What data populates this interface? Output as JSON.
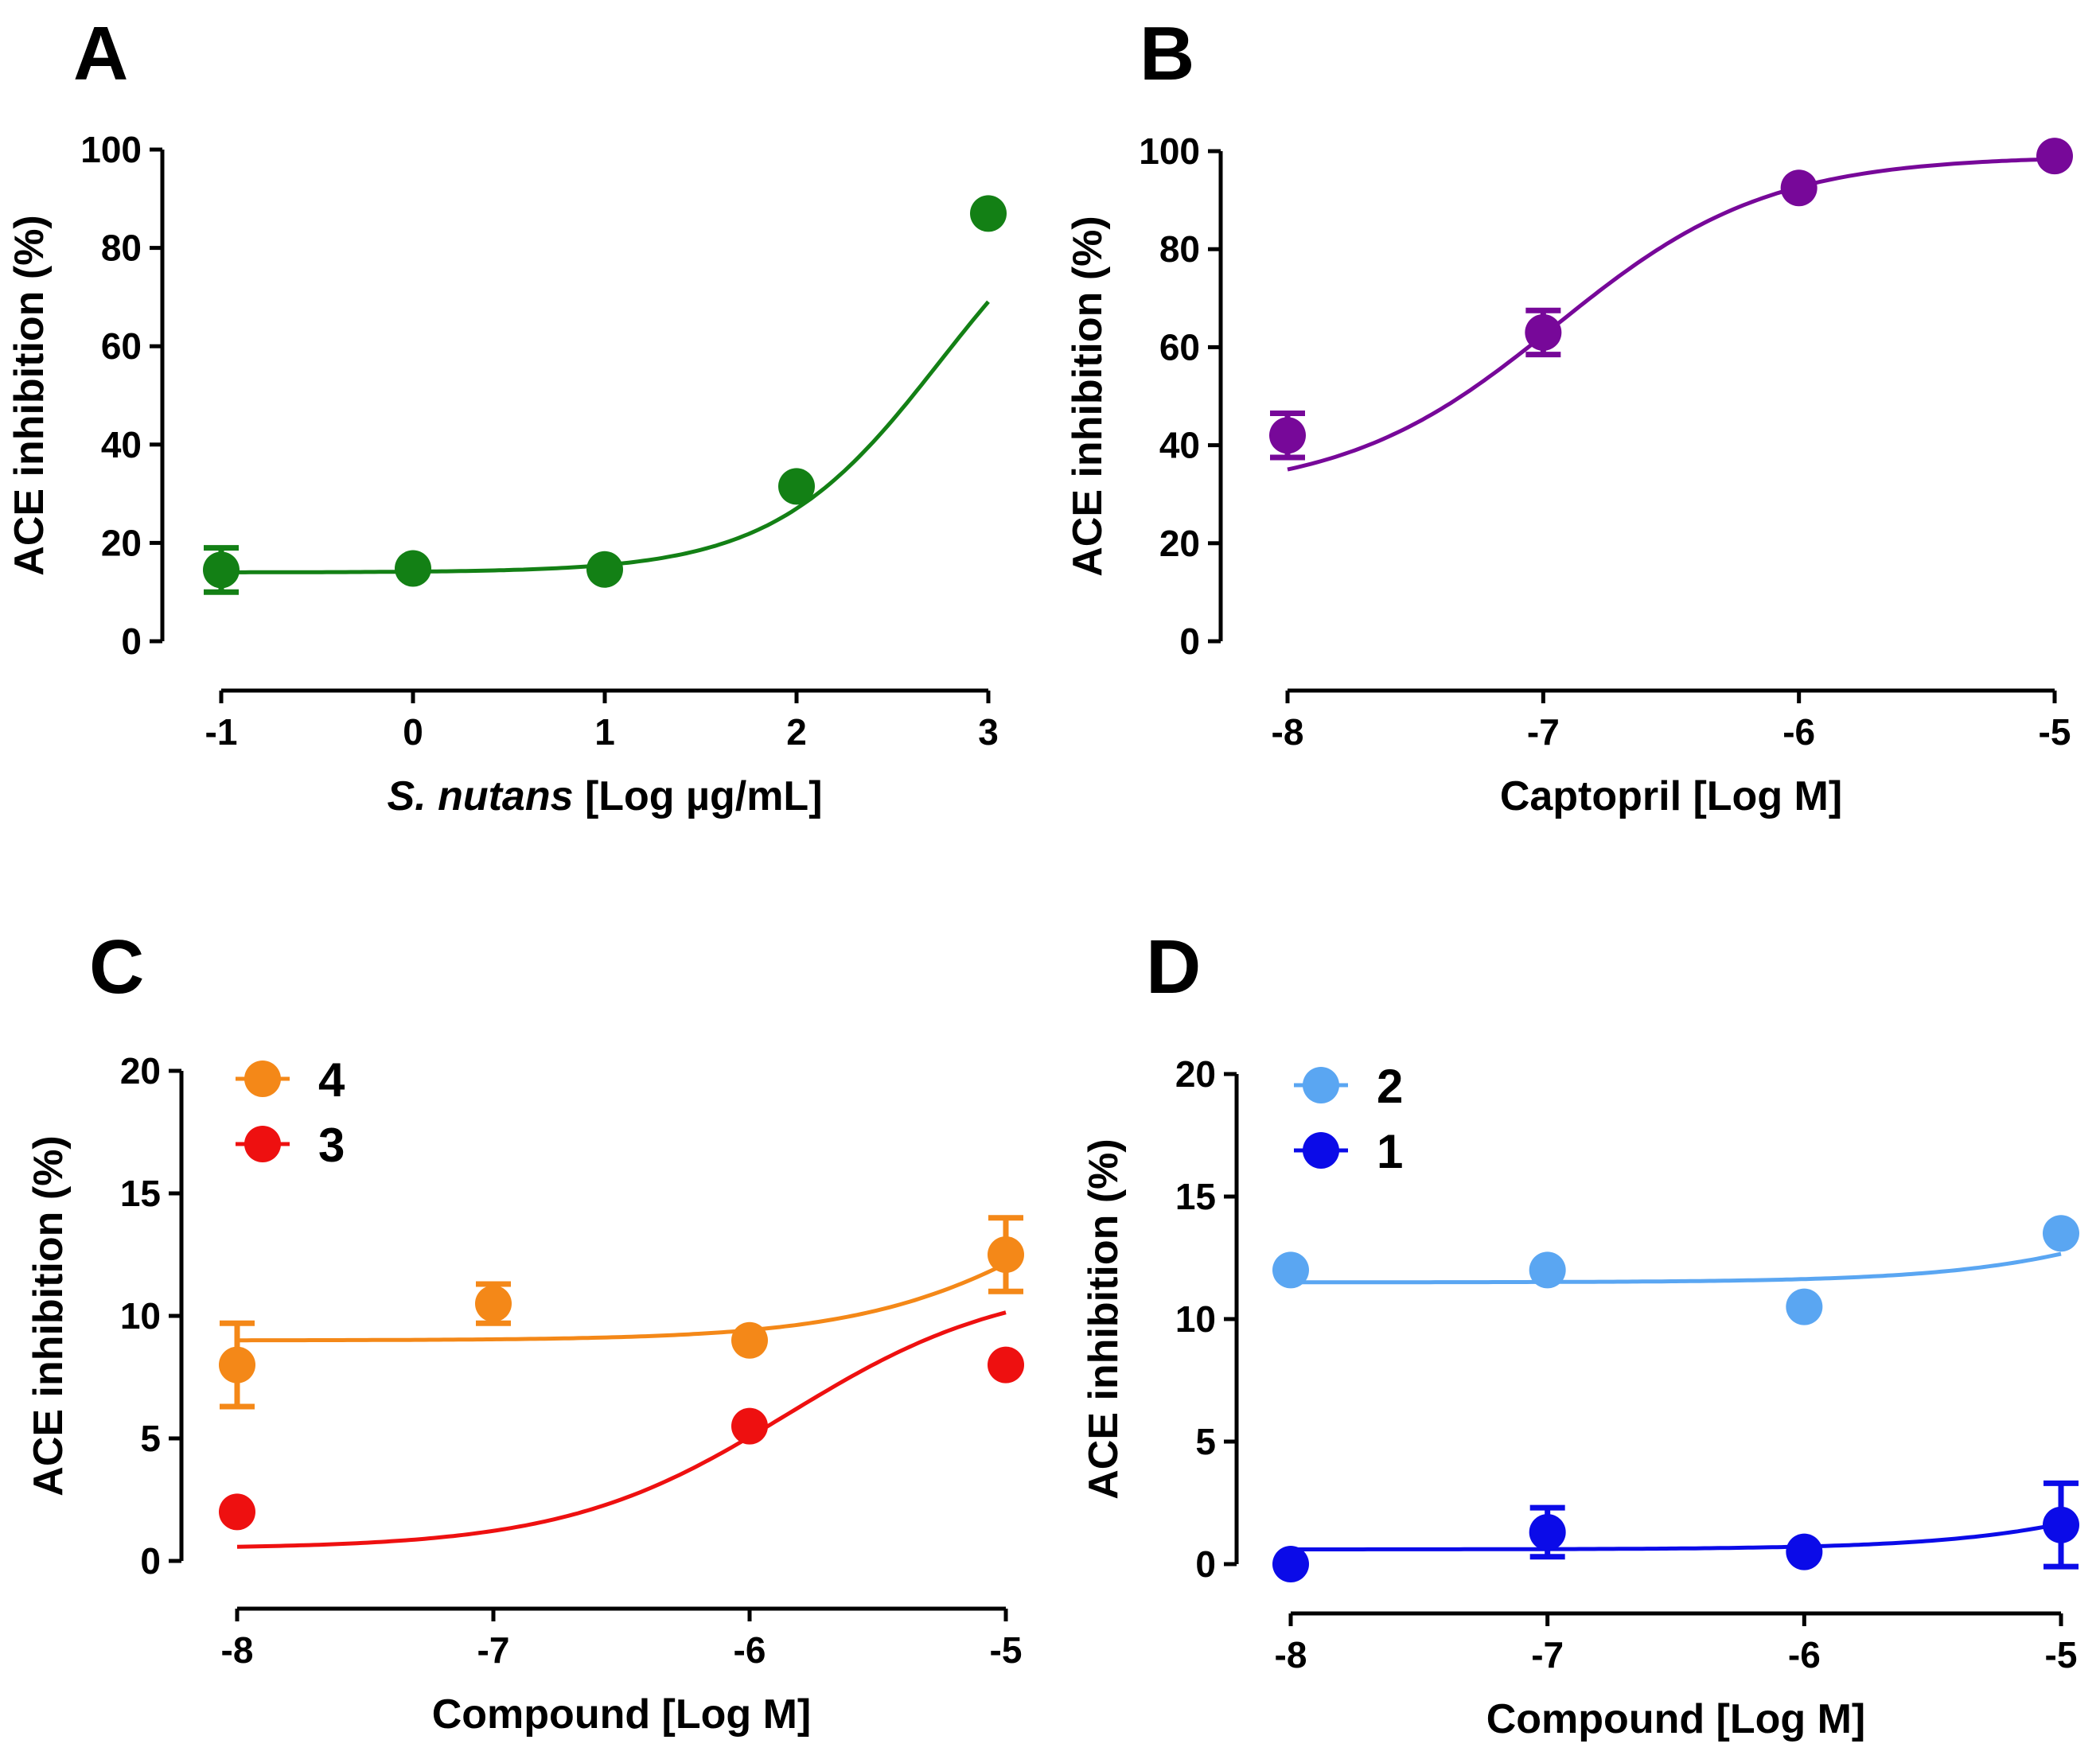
{
  "chart_data": [
    {
      "panel": "A",
      "type": "scatter",
      "xlabel_italic": "S. nutans",
      "xlabel_rest": " [Log µg/mL]",
      "ylabel": "ACE inhibition (%)",
      "xlim": [
        -1,
        3
      ],
      "ylim": [
        0,
        100
      ],
      "xticks": [
        -1,
        0,
        1,
        2,
        3
      ],
      "yticks": [
        0,
        20,
        40,
        60,
        80,
        100
      ],
      "series": [
        {
          "name": "S. nutans",
          "color": "#138015",
          "x": [
            -1,
            0,
            1,
            2,
            3
          ],
          "y": [
            14.5,
            14.8,
            14.6,
            31.5,
            87
          ],
          "err": [
            4.5,
            0,
            0,
            0,
            0
          ],
          "fit": {
            "bottom": 14,
            "top": 100,
            "logEC50": 2.75,
            "hill": 1
          }
        }
      ]
    },
    {
      "panel": "B",
      "type": "scatter",
      "xlabel": "Captopril [Log M]",
      "ylabel": "ACE inhibition (%)",
      "xlim": [
        -8,
        -5
      ],
      "ylim": [
        0,
        100
      ],
      "xticks": [
        -8,
        -7,
        -6,
        -5
      ],
      "yticks": [
        0,
        20,
        40,
        60,
        80,
        100
      ],
      "series": [
        {
          "name": "Captopril",
          "color": "#770899",
          "x": [
            -8,
            -7,
            -6,
            -5
          ],
          "y": [
            42,
            63,
            92.5,
            99
          ],
          "err": [
            4.5,
            4.5,
            0,
            0
          ],
          "fit": {
            "bottom": 30,
            "top": 99,
            "logEC50": -6.95,
            "hill": 1.05
          }
        }
      ]
    },
    {
      "panel": "C",
      "type": "scatter",
      "xlabel": "Compound [Log M]",
      "ylabel": "ACE inhibition (%)",
      "xlim": [
        -8,
        -5
      ],
      "ylim": [
        0,
        20
      ],
      "xticks": [
        -8,
        -7,
        -6,
        -5
      ],
      "yticks": [
        0,
        5,
        10,
        15,
        20
      ],
      "series": [
        {
          "name": "4",
          "color": "#f48818",
          "x": [
            -8,
            -7,
            -6,
            -5
          ],
          "y": [
            8,
            10.5,
            9,
            12.5
          ],
          "err": [
            1.7,
            0.8,
            0,
            1.5
          ],
          "fit": {
            "bottom": 9,
            "top": 20,
            "logEC50": -4.6,
            "hill": 1
          }
        },
        {
          "name": "3",
          "color": "#ee1010",
          "x": [
            -8,
            -7,
            -6,
            -5
          ],
          "y": [
            2,
            null,
            5.5,
            8
          ],
          "err": [
            0,
            0,
            0,
            0
          ],
          "fit": {
            "bottom": 0.5,
            "top": 11.5,
            "logEC50": -5.85,
            "hill": 1
          }
        }
      ]
    },
    {
      "panel": "D",
      "type": "scatter",
      "xlabel": "Compound [Log M]",
      "ylabel": "ACE inhibition (%)",
      "xlim": [
        -8,
        -5
      ],
      "ylim": [
        0,
        20
      ],
      "xticks": [
        -8,
        -7,
        -6,
        -5
      ],
      "yticks": [
        0,
        5,
        10,
        15,
        20
      ],
      "series": [
        {
          "name": "2",
          "color": "#5aa6f2",
          "x": [
            -8,
            -7,
            -6,
            -5
          ],
          "y": [
            12,
            12,
            10.5,
            13.5
          ],
          "err": [
            0,
            0,
            0,
            0
          ],
          "fit": {
            "bottom": 11.5,
            "top": 20,
            "logEC50": -4.2,
            "hill": 1
          }
        },
        {
          "name": "1",
          "color": "#0b0be8",
          "x": [
            -8,
            -7,
            -6,
            -5
          ],
          "y": [
            0,
            1.3,
            0.5,
            1.6
          ],
          "err": [
            0,
            1,
            0,
            1.7
          ],
          "fit": {
            "bottom": 0.6,
            "top": 10,
            "logEC50": -4.1,
            "hill": 1
          }
        }
      ]
    }
  ]
}
